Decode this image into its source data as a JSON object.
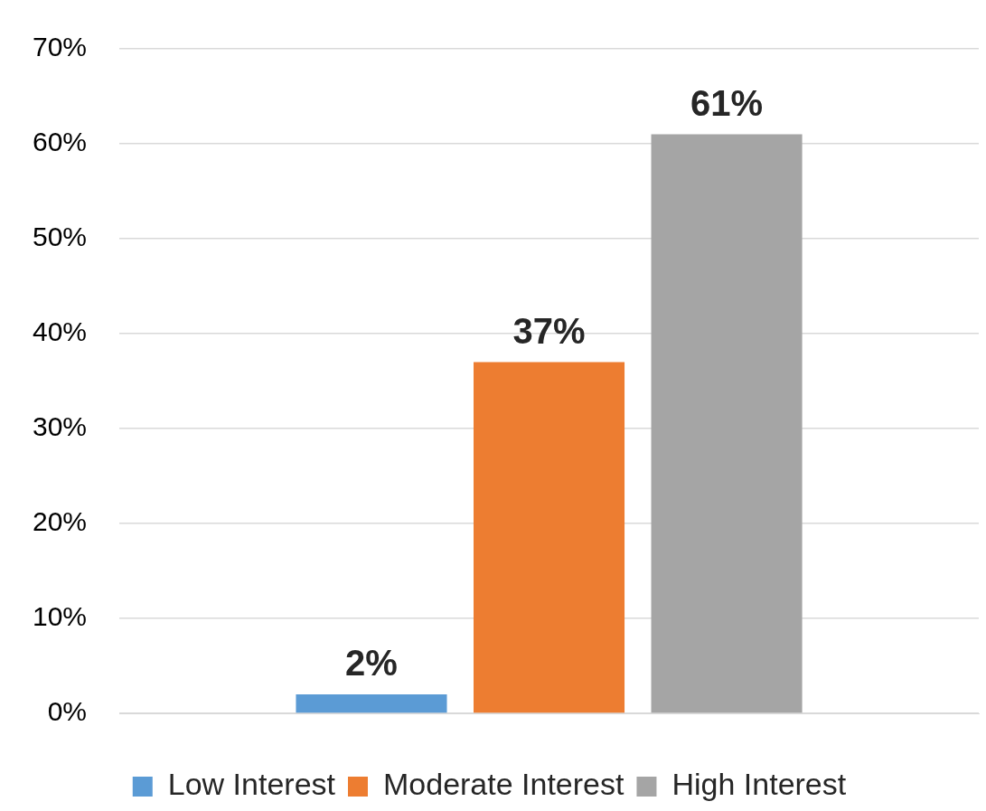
{
  "chart_data": {
    "type": "bar",
    "categories": [
      null
    ],
    "series": [
      {
        "name": "Low Interest",
        "color": "#5b9bd5",
        "values": [
          2
        ],
        "value_labels": [
          "2%"
        ]
      },
      {
        "name": "Moderate Interest",
        "color": "#ed7d31",
        "values": [
          37
        ],
        "value_labels": [
          "37%"
        ]
      },
      {
        "name": "High Interest",
        "color": "#a5a5a5",
        "values": [
          61
        ],
        "value_labels": [
          "61%"
        ]
      }
    ],
    "ylim": [
      0,
      70
    ],
    "yticks": [
      {
        "value": 0,
        "label": "0%"
      },
      {
        "value": 10,
        "label": "10%"
      },
      {
        "value": 20,
        "label": "20%"
      },
      {
        "value": 30,
        "label": "30%"
      },
      {
        "value": 40,
        "label": "40%"
      },
      {
        "value": 50,
        "label": "50%"
      },
      {
        "value": 60,
        "label": "60%"
      },
      {
        "value": 70,
        "label": "70%"
      }
    ],
    "grid": "y",
    "legend": "bottom"
  }
}
